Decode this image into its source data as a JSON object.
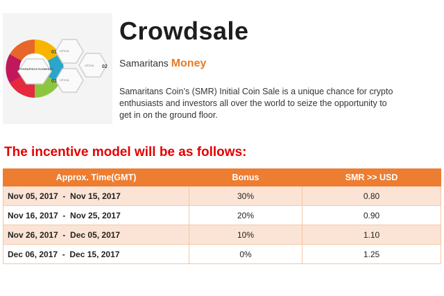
{
  "header": {
    "title": "Crowdsale",
    "brand_prefix": "Samaritans",
    "brand_accent": "Money",
    "intro": "Samaritans Coin’s (SMR) Initial Coin Sale is a unique chance for crypto enthusiasts and investors all over the world to seize the opportunity to get in on the ground floor."
  },
  "infographic": {
    "center_label": "INFOGRAPHICS ELEMENTS",
    "steps": [
      {
        "number": "01",
        "label": "OPTION"
      },
      {
        "number": "02",
        "label": "OPTION"
      },
      {
        "number": "03",
        "label": "OPTION"
      }
    ],
    "colors": [
      "#f7b500",
      "#2aa6c8",
      "#8cc63f",
      "#e5293f",
      "#e7662a"
    ]
  },
  "section_heading": "The incentive model will be as follows:",
  "table": {
    "headers": [
      "Approx. Time(GMT)",
      "Bonus",
      "SMR >> USD"
    ],
    "rows": [
      {
        "time": "Nov 05, 2017  -  Nov 15, 2017",
        "bonus": "30%",
        "rate": "0.80"
      },
      {
        "time": "Nov 16, 2017  -  Nov 25, 2017",
        "bonus": "20%",
        "rate": "0.90"
      },
      {
        "time": "Nov 26, 2017  -  Dec 05, 2017",
        "bonus": "10%",
        "rate": "1.10"
      },
      {
        "time": "Dec 06, 2017  -  Dec 15, 2017",
        "bonus": "0%",
        "rate": "1.25"
      }
    ],
    "header_color": "#ed7d31",
    "shade_color": "#fbe4d5"
  }
}
